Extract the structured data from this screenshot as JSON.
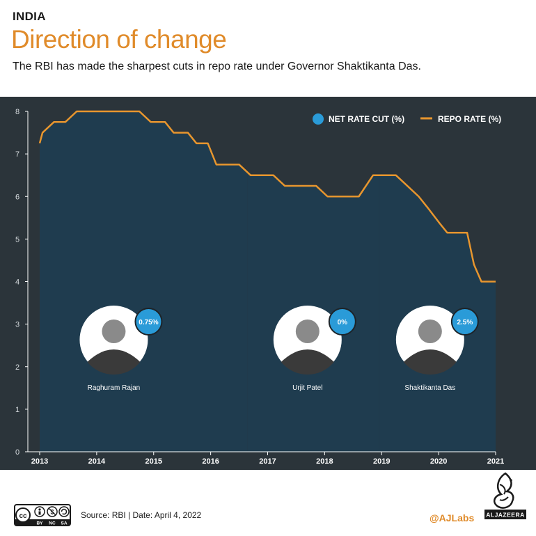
{
  "header": {
    "kicker": "INDIA",
    "title": "Direction of change",
    "subtitle": "The RBI has made the sharpest cuts in repo rate under Governor Shaktikanta Das."
  },
  "colors": {
    "line": "#e8962e",
    "area": "#1f3c4f",
    "background": "#2b343a",
    "accent_blue": "#2a9bd8",
    "title": "#e08b2a"
  },
  "chart_data": {
    "type": "area",
    "legend": {
      "placement": "top-right",
      "items": [
        {
          "label": "NET RATE CUT (%)",
          "marker": "circle"
        },
        {
          "label": "REPO RATE (%)",
          "marker": "line"
        }
      ]
    },
    "ylim": [
      0,
      8
    ],
    "yticks": [
      "0",
      "1",
      "2",
      "3",
      "4",
      "5",
      "6",
      "7",
      "8"
    ],
    "xlim": [
      2013.0,
      2021.0
    ],
    "xticks": [
      {
        "label": "2013",
        "x": 2013.0
      },
      {
        "label": "2014",
        "x": 2014.0
      },
      {
        "label": "2015",
        "x": 2015.0
      },
      {
        "label": "2016",
        "x": 2016.0
      },
      {
        "label": "2017",
        "x": 2017.0
      },
      {
        "label": "2018",
        "x": 2018.0
      },
      {
        "label": "2019",
        "x": 2019.0
      },
      {
        "label": "2020",
        "x": 2020.0
      },
      {
        "label": "2021",
        "x": 2021.0
      }
    ],
    "series": [
      {
        "name": "REPO RATE (%)",
        "points": [
          [
            2012.85,
            7.25
          ],
          [
            2013.05,
            7.5
          ],
          [
            2013.25,
            7.75
          ],
          [
            2013.45,
            7.75
          ],
          [
            2013.65,
            8.0
          ],
          [
            2014.1,
            8.0
          ],
          [
            2014.6,
            8.0
          ],
          [
            2014.75,
            8.0
          ],
          [
            2014.95,
            7.75
          ],
          [
            2015.2,
            7.75
          ],
          [
            2015.35,
            7.5
          ],
          [
            2015.6,
            7.5
          ],
          [
            2015.75,
            7.25
          ],
          [
            2015.95,
            7.25
          ],
          [
            2016.1,
            6.75
          ],
          [
            2016.5,
            6.75
          ],
          [
            2016.7,
            6.5
          ],
          [
            2017.1,
            6.5
          ],
          [
            2017.3,
            6.25
          ],
          [
            2017.85,
            6.25
          ],
          [
            2018.05,
            6.0
          ],
          [
            2018.6,
            6.0
          ],
          [
            2018.85,
            6.5
          ],
          [
            2019.25,
            6.5
          ],
          [
            2019.45,
            6.25
          ],
          [
            2019.65,
            6.0
          ],
          [
            2019.8,
            5.75
          ],
          [
            2020.0,
            5.4
          ],
          [
            2020.15,
            5.15
          ],
          [
            2020.5,
            5.15
          ],
          [
            2020.62,
            4.4
          ],
          [
            2020.75,
            4.0
          ],
          [
            2020.95,
            4.0
          ],
          [
            2021.2,
            4.0
          ]
        ]
      }
    ],
    "governors": [
      {
        "name": "Raghuram Rajan",
        "start": 2012.85,
        "end": 2016.65,
        "net_cut": "0.75%",
        "center_x": 2014.3
      },
      {
        "name": "Urjit Patel",
        "start": 2016.65,
        "end": 2018.95,
        "net_cut": "0%",
        "center_x": 2017.7
      },
      {
        "name": "Shaktikanta Das",
        "start": 2018.95,
        "end": 2021.2,
        "net_cut": "2.5%",
        "center_x": 2019.85
      }
    ]
  },
  "footer": {
    "license_icons": [
      "cc-icon",
      "by-icon",
      "nc-icon",
      "sa-icon"
    ],
    "license_labels": [
      "BY",
      "NC",
      "SA"
    ],
    "source": "Source: RBI | Date: April 4, 2022",
    "handle": "@AJLabs",
    "logo_text": "ALJAZEERA"
  }
}
